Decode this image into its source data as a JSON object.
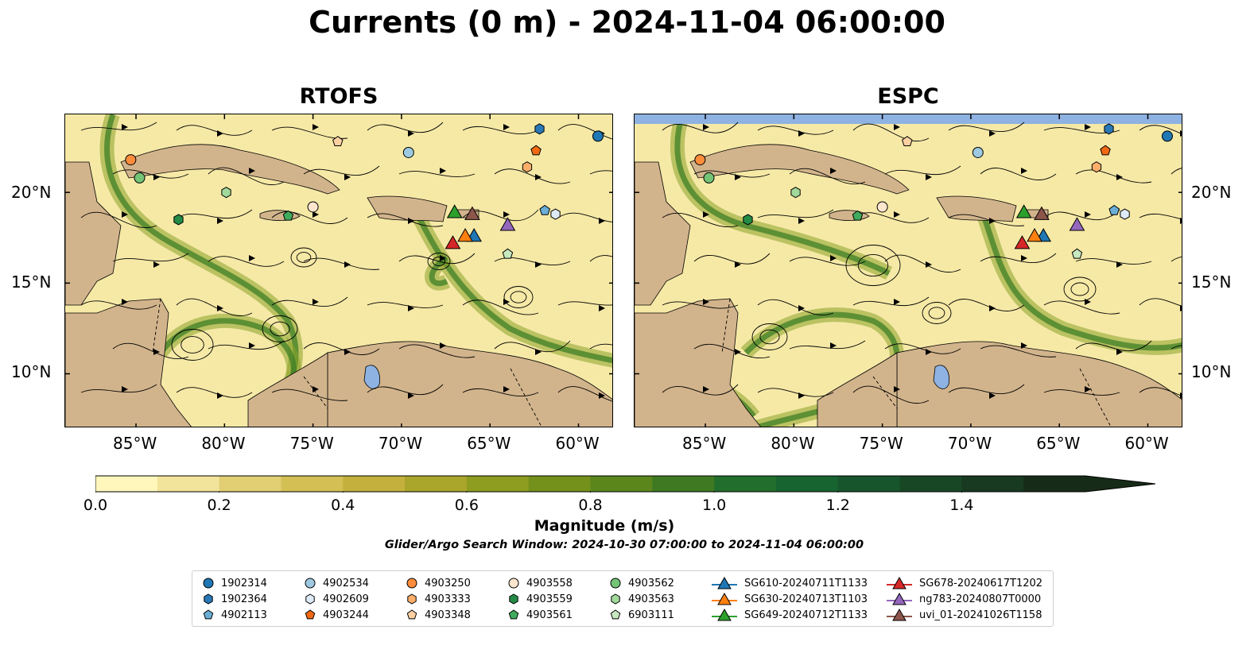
{
  "title": "Currents (0 m) - 2024-11-04 06:00:00",
  "panels": [
    {
      "name": "RTOFS"
    },
    {
      "name": "ESPC"
    }
  ],
  "lon_ticks": [
    "85°W",
    "80°W",
    "75°W",
    "70°W",
    "65°W",
    "60°W"
  ],
  "lat_ticks": [
    "20°N",
    "15°N",
    "10°N"
  ],
  "map_extent": {
    "lon_min": -89,
    "lon_max": -58,
    "lat_min": 7,
    "lat_max": 24.3
  },
  "colorbar": {
    "label": "Magnitude (m/s)",
    "ticks": [
      "0.0",
      "0.2",
      "0.4",
      "0.6",
      "0.8",
      "1.0",
      "1.2",
      "1.4"
    ],
    "tick_values": [
      0,
      0.2,
      0.4,
      0.6,
      0.8,
      1.0,
      1.2,
      1.4
    ],
    "vmin": 0,
    "vmax": 1.6,
    "colors": [
      "#fff7bc",
      "#f2e49a",
      "#e2cf74",
      "#d4bf55",
      "#c3b03d",
      "#aaa62b",
      "#8e9c20",
      "#74911b",
      "#5b861c",
      "#3f7a22",
      "#226e2c",
      "#176431",
      "#17552c",
      "#184726",
      "#183a20",
      "#172c18"
    ]
  },
  "search_window": "Glider/Argo Search Window: 2024-10-30 07:00:00 to 2024-11-04 06:00:00",
  "colors": {
    "land": "#d2b48c",
    "water_lake": "#8eb2e1",
    "ocean_low": "#f6e9a6",
    "streamline": "#000000"
  },
  "legend": [
    {
      "label": "1902314",
      "marker": "circle",
      "color": "#1f77b4",
      "lon": -58.9,
      "lat": 23.1
    },
    {
      "label": "1902364",
      "marker": "hexagon",
      "color": "#2a78b6",
      "lon": -62.2,
      "lat": 23.5
    },
    {
      "label": "4902113",
      "marker": "pentagon",
      "color": "#6aaed6",
      "lon": -61.9,
      "lat": 19.0
    },
    {
      "label": "4902534",
      "marker": "circle",
      "color": "#9ecae1",
      "lon": -69.6,
      "lat": 22.2
    },
    {
      "label": "4902609",
      "marker": "hexagon",
      "color": "#deebf7",
      "lon": -61.3,
      "lat": 18.8
    },
    {
      "label": "4903244",
      "marker": "pentagon",
      "color": "#f16913",
      "lon": -62.4,
      "lat": 22.3
    },
    {
      "label": "4903250",
      "marker": "circle",
      "color": "#fd8d3c",
      "lon": -85.3,
      "lat": 21.8
    },
    {
      "label": "4903333",
      "marker": "hexagon",
      "color": "#fdae6b",
      "lon": -62.9,
      "lat": 21.4
    },
    {
      "label": "4903348",
      "marker": "pentagon",
      "color": "#fdd0a2",
      "lon": -73.6,
      "lat": 22.8
    },
    {
      "label": "4903558",
      "marker": "circle",
      "color": "#fee6ce",
      "lon": -75.0,
      "lat": 19.2
    },
    {
      "label": "4903559",
      "marker": "hexagon",
      "color": "#238b45",
      "lon": -82.6,
      "lat": 18.5
    },
    {
      "label": "4903561",
      "marker": "pentagon",
      "color": "#41ab5d",
      "lon": -76.4,
      "lat": 18.7
    },
    {
      "label": "4903562",
      "marker": "circle",
      "color": "#74c476",
      "lon": -84.8,
      "lat": 20.8
    },
    {
      "label": "4903563",
      "marker": "hexagon",
      "color": "#a1d99b",
      "lon": -79.9,
      "lat": 20.0
    },
    {
      "label": "6903111",
      "marker": "pentagon",
      "color": "#c7e9c0",
      "lon": -64.0,
      "lat": 16.6
    },
    {
      "label": "SG610-20240711T1133",
      "marker": "triangle",
      "color": "#1f77b4",
      "lon": -65.9,
      "lat": 17.6
    },
    {
      "label": "SG630-20240713T1103",
      "marker": "triangle",
      "color": "#ff7f0e",
      "lon": -66.4,
      "lat": 17.6
    },
    {
      "label": "SG649-20240712T1133",
      "marker": "triangle",
      "color": "#2ca02c",
      "lon": -67.0,
      "lat": 18.9
    },
    {
      "label": "SG678-20240617T1202",
      "marker": "triangle",
      "color": "#d62728",
      "lon": -67.1,
      "lat": 17.2
    },
    {
      "label": "ng783-20240807T0000",
      "marker": "triangle",
      "color": "#9467bd",
      "lon": -64.0,
      "lat": 18.2
    },
    {
      "label": "uvi_01-20241026T1158",
      "marker": "triangle",
      "color": "#8c564b",
      "lon": -66.0,
      "lat": 18.8
    }
  ]
}
